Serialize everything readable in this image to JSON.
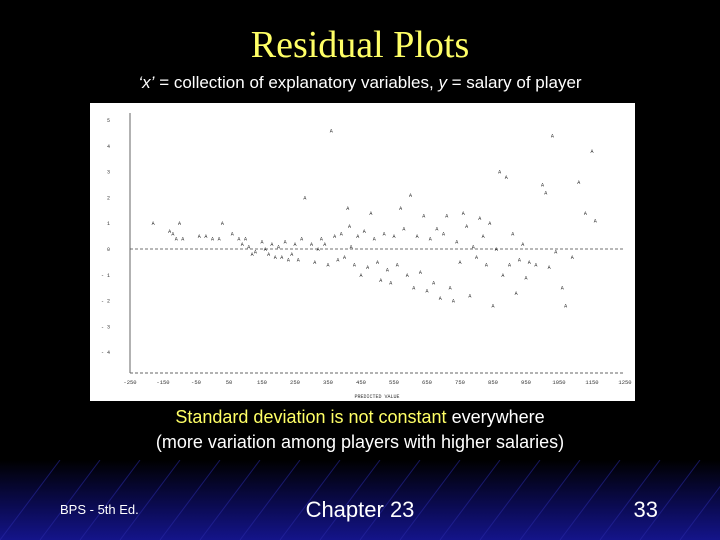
{
  "slide": {
    "title": "Residual Plots",
    "subtitle_x": "‘x’",
    "subtitle_mid": " = collection of explanatory variables,  ",
    "subtitle_y": "y",
    "subtitle_end": " = salary of player",
    "note_highlight": "Standard deviation is not constant",
    "note_rest": " everywhere",
    "note_line2": "(more variation among players with higher salaries)"
  },
  "footer": {
    "left": "BPS - 5th Ed.",
    "center": "Chapter 23",
    "page": "33"
  },
  "chart_data": {
    "type": "scatter",
    "marker": "A",
    "xlabel": "PREDICTED VALUE",
    "ylabel": "",
    "xlim": [
      -250,
      1250
    ],
    "ylim": [
      -4.5,
      5.2
    ],
    "x_ticks": [
      -250,
      -150,
      -50,
      50,
      150,
      250,
      350,
      450,
      550,
      650,
      750,
      850,
      950,
      1050,
      1150,
      1250
    ],
    "y_ticks": [
      5,
      4,
      3,
      2,
      1,
      0,
      -1,
      -2,
      -3,
      -4
    ],
    "points": [
      [
        -180,
        1.0
      ],
      [
        -100,
        1.0
      ],
      [
        -130,
        0.7
      ],
      [
        -120,
        0.6
      ],
      [
        -110,
        0.4
      ],
      [
        -90,
        0.4
      ],
      [
        -40,
        0.5
      ],
      [
        -20,
        0.5
      ],
      [
        0,
        0.4
      ],
      [
        20,
        0.4
      ],
      [
        30,
        1.0
      ],
      [
        60,
        0.6
      ],
      [
        80,
        0.4
      ],
      [
        90,
        0.2
      ],
      [
        100,
        0.4
      ],
      [
        110,
        0.1
      ],
      [
        120,
        -0.2
      ],
      [
        130,
        -0.1
      ],
      [
        150,
        0.3
      ],
      [
        160,
        0.0
      ],
      [
        170,
        -0.2
      ],
      [
        180,
        0.2
      ],
      [
        190,
        -0.3
      ],
      [
        200,
        0.1
      ],
      [
        210,
        -0.3
      ],
      [
        220,
        0.3
      ],
      [
        230,
        -0.4
      ],
      [
        240,
        -0.2
      ],
      [
        250,
        0.2
      ],
      [
        260,
        -0.4
      ],
      [
        270,
        0.4
      ],
      [
        280,
        2.0
      ],
      [
        300,
        0.2
      ],
      [
        310,
        -0.5
      ],
      [
        320,
        0.0
      ],
      [
        330,
        0.4
      ],
      [
        340,
        0.2
      ],
      [
        350,
        -0.6
      ],
      [
        360,
        4.6
      ],
      [
        370,
        0.5
      ],
      [
        380,
        -0.4
      ],
      [
        390,
        0.6
      ],
      [
        400,
        -0.3
      ],
      [
        410,
        1.6
      ],
      [
        415,
        0.9
      ],
      [
        420,
        0.1
      ],
      [
        430,
        -0.6
      ],
      [
        440,
        0.5
      ],
      [
        450,
        -1.0
      ],
      [
        460,
        0.7
      ],
      [
        470,
        -0.7
      ],
      [
        480,
        1.4
      ],
      [
        490,
        0.4
      ],
      [
        500,
        -0.5
      ],
      [
        510,
        -1.2
      ],
      [
        520,
        0.6
      ],
      [
        530,
        -0.8
      ],
      [
        540,
        -1.3
      ],
      [
        550,
        0.5
      ],
      [
        560,
        -0.6
      ],
      [
        570,
        1.6
      ],
      [
        580,
        0.8
      ],
      [
        590,
        -1.0
      ],
      [
        600,
        2.1
      ],
      [
        610,
        -1.5
      ],
      [
        620,
        0.5
      ],
      [
        630,
        -0.9
      ],
      [
        640,
        1.3
      ],
      [
        650,
        -1.6
      ],
      [
        660,
        0.4
      ],
      [
        670,
        -1.3
      ],
      [
        680,
        0.8
      ],
      [
        690,
        -1.9
      ],
      [
        700,
        0.6
      ],
      [
        710,
        1.3
      ],
      [
        720,
        -1.5
      ],
      [
        730,
        -2.0
      ],
      [
        740,
        0.3
      ],
      [
        750,
        -0.5
      ],
      [
        760,
        1.4
      ],
      [
        770,
        0.9
      ],
      [
        780,
        -1.8
      ],
      [
        790,
        0.1
      ],
      [
        800,
        -0.3
      ],
      [
        810,
        1.2
      ],
      [
        820,
        0.5
      ],
      [
        830,
        -0.6
      ],
      [
        840,
        1.0
      ],
      [
        850,
        -2.2
      ],
      [
        860,
        0.0
      ],
      [
        870,
        3.0
      ],
      [
        880,
        -1.0
      ],
      [
        890,
        2.8
      ],
      [
        900,
        -0.6
      ],
      [
        910,
        0.6
      ],
      [
        920,
        -1.7
      ],
      [
        930,
        -0.4
      ],
      [
        940,
        0.2
      ],
      [
        950,
        -1.1
      ],
      [
        960,
        -0.5
      ],
      [
        980,
        -0.6
      ],
      [
        1000,
        2.5
      ],
      [
        1010,
        2.2
      ],
      [
        1020,
        -0.7
      ],
      [
        1030,
        4.4
      ],
      [
        1040,
        -0.1
      ],
      [
        1060,
        -1.5
      ],
      [
        1070,
        -2.2
      ],
      [
        1090,
        -0.3
      ],
      [
        1110,
        2.6
      ],
      [
        1130,
        1.4
      ],
      [
        1150,
        3.8
      ],
      [
        1160,
        1.1
      ]
    ]
  }
}
